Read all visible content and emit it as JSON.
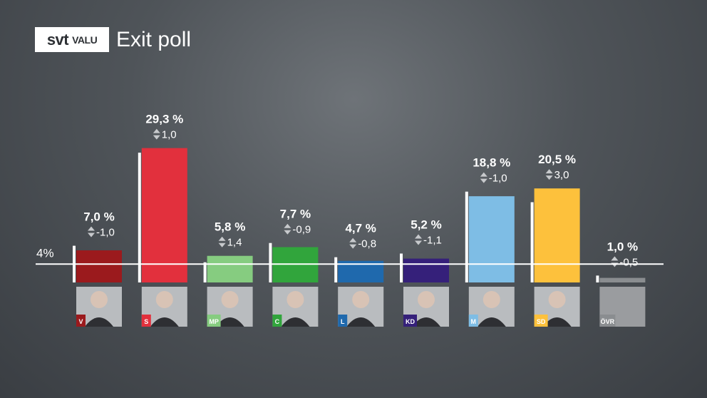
{
  "header": {
    "logo_svt": "svt",
    "logo_valu": "VALU",
    "title": "Exit poll"
  },
  "threshold_label": "4%",
  "chart_data": {
    "type": "bar",
    "title": "Exit poll",
    "categories": [
      "V",
      "S",
      "MP",
      "C",
      "L",
      "KD",
      "M",
      "SD",
      "ÖVR"
    ],
    "values": [
      7.0,
      29.3,
      5.8,
      7.7,
      4.7,
      5.2,
      18.8,
      20.5,
      1.0
    ],
    "value_labels": [
      "7,0 %",
      "29,3 %",
      "5,8 %",
      "7,7 %",
      "4,7 %",
      "5,2 %",
      "18,8 %",
      "20,5 %",
      "1,0 %"
    ],
    "changes": [
      -1.0,
      1.0,
      1.4,
      -0.9,
      -0.8,
      -1.1,
      -1.0,
      3.0,
      -0.5
    ],
    "change_labels": [
      "-1,0",
      "1,0",
      "1,4",
      "-0,9",
      "-0,8",
      "-1,1",
      "-1,0",
      "3,0",
      "-0,5"
    ],
    "previous_values": [
      8.0,
      28.3,
      4.4,
      8.6,
      5.5,
      6.3,
      19.8,
      17.5,
      1.5
    ],
    "colors": [
      "#9b1a1d",
      "#e2303d",
      "#86cc80",
      "#31a53c",
      "#1f69ad",
      "#35207a",
      "#7ebde5",
      "#fdc13c",
      "#8a8d90"
    ],
    "threshold": 4,
    "ylim": [
      0,
      32
    ]
  }
}
